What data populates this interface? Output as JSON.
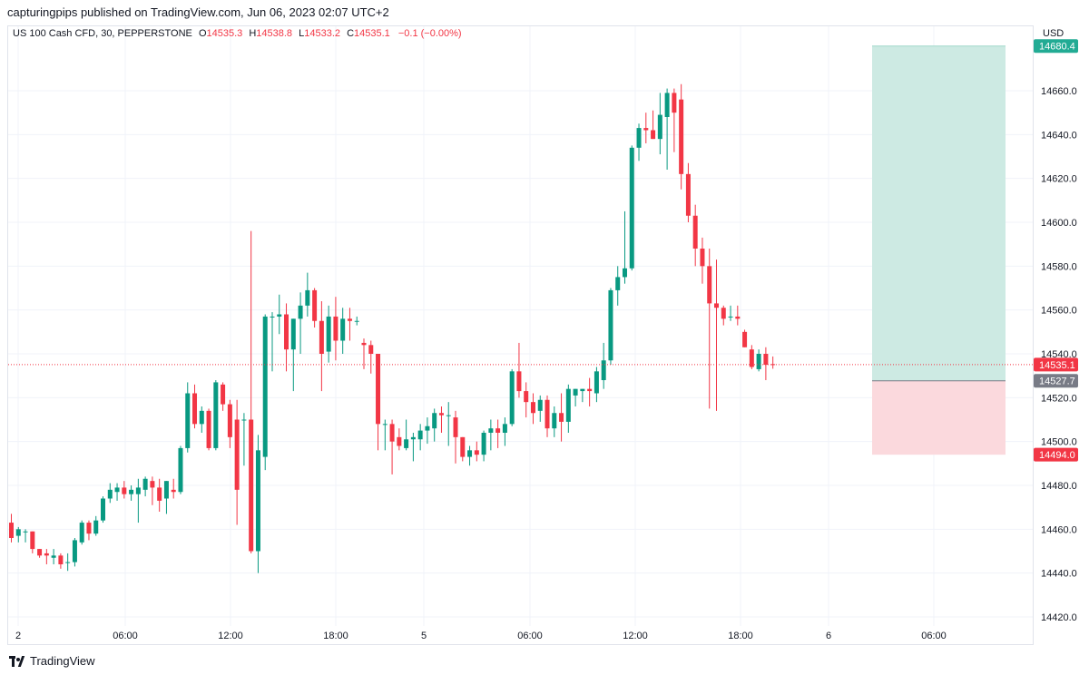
{
  "header": {
    "published_line": "capturingpips published on TradingView.com, Jun 06, 2023 02:07 UTC+2"
  },
  "legend": {
    "symbol": "US 100 Cash CFD, 30, PEPPERSTONE",
    "open_label": "O",
    "open": "14535.3",
    "high_label": "H",
    "high": "14538.8",
    "low_label": "L",
    "low": "14533.2",
    "close_label": "C",
    "close": "14535.1",
    "change": "−0.1 (−0.00%)"
  },
  "price_axis": {
    "currency": "USD",
    "ticks": [
      "14660.0",
      "14640.0",
      "14620.0",
      "14600.0",
      "14580.0",
      "14560.0",
      "14540.0",
      "14520.0",
      "14500.0",
      "14480.0",
      "14460.0",
      "14440.0",
      "14420.0"
    ],
    "tick_values": [
      14660,
      14640,
      14620,
      14600,
      14580,
      14560,
      14540,
      14520,
      14500,
      14480,
      14460,
      14440,
      14420
    ]
  },
  "time_axis": {
    "labels": [
      "2",
      "06:00",
      "12:00",
      "18:00",
      "5",
      "06:00",
      "12:00",
      "18:00",
      "6",
      "06:00"
    ]
  },
  "badges": {
    "target": "14680.4",
    "current": "14535.1",
    "entry": "14527.7",
    "stop": "14494.0"
  },
  "colors": {
    "up": "#089981",
    "down": "#f23645",
    "profit_zone": "#cdeae3",
    "loss_zone": "#fbd9dd",
    "entry_badge": "#787b86",
    "grid": "#f0f3fa"
  },
  "footer": {
    "brand": "TradingView"
  },
  "chart_data": {
    "type": "candlestick",
    "interval": "30",
    "ylim": [
      14415,
      14683
    ],
    "position": {
      "type": "long",
      "entry": 14527.7,
      "target": 14680.4,
      "stop": 14494.0
    },
    "ohlc": [
      {
        "o": 14463,
        "h": 14467,
        "l": 14454,
        "c": 14456
      },
      {
        "o": 14457,
        "h": 14461,
        "l": 14454,
        "c": 14460
      },
      {
        "o": 14459,
        "h": 14460,
        "l": 14454,
        "c": 14459
      },
      {
        "o": 14459,
        "h": 14459,
        "l": 14449,
        "c": 14451
      },
      {
        "o": 14451,
        "h": 14451,
        "l": 14447,
        "c": 14448
      },
      {
        "o": 14449,
        "h": 14451,
        "l": 14444,
        "c": 14448
      },
      {
        "o": 14447,
        "h": 14451,
        "l": 14444,
        "c": 14448
      },
      {
        "o": 14448,
        "h": 14449,
        "l": 14442,
        "c": 14444
      },
      {
        "o": 14445,
        "h": 14449,
        "l": 14441,
        "c": 14445
      },
      {
        "o": 14445,
        "h": 14456,
        "l": 14443,
        "c": 14455
      },
      {
        "o": 14454,
        "h": 14464,
        "l": 14453,
        "c": 14463
      },
      {
        "o": 14463,
        "h": 14464,
        "l": 14455,
        "c": 14458
      },
      {
        "o": 14458,
        "h": 14466,
        "l": 14457,
        "c": 14464
      },
      {
        "o": 14464,
        "h": 14475,
        "l": 14463,
        "c": 14474
      },
      {
        "o": 14474,
        "h": 14481,
        "l": 14472,
        "c": 14478
      },
      {
        "o": 14477,
        "h": 14481,
        "l": 14473,
        "c": 14479
      },
      {
        "o": 14479,
        "h": 14482,
        "l": 14474,
        "c": 14476
      },
      {
        "o": 14476,
        "h": 14480,
        "l": 14473,
        "c": 14478
      },
      {
        "o": 14476,
        "h": 14483,
        "l": 14463,
        "c": 14479
      },
      {
        "o": 14478,
        "h": 14484,
        "l": 14475,
        "c": 14483
      },
      {
        "o": 14482,
        "h": 14484,
        "l": 14471,
        "c": 14479
      },
      {
        "o": 14479,
        "h": 14483,
        "l": 14468,
        "c": 14473
      },
      {
        "o": 14474,
        "h": 14482,
        "l": 14467,
        "c": 14482
      },
      {
        "o": 14478,
        "h": 14483,
        "l": 14474,
        "c": 14477
      },
      {
        "o": 14477,
        "h": 14498,
        "l": 14476,
        "c": 14497
      },
      {
        "o": 14497,
        "h": 14527,
        "l": 14495,
        "c": 14522
      },
      {
        "o": 14522,
        "h": 14526,
        "l": 14506,
        "c": 14508
      },
      {
        "o": 14508,
        "h": 14516,
        "l": 14504,
        "c": 14514
      },
      {
        "o": 14514,
        "h": 14515,
        "l": 14496,
        "c": 14497
      },
      {
        "o": 14497,
        "h": 14528,
        "l": 14496,
        "c": 14527
      },
      {
        "o": 14526,
        "h": 14527,
        "l": 14514,
        "c": 14517
      },
      {
        "o": 14517,
        "h": 14519,
        "l": 14497,
        "c": 14502
      },
      {
        "o": 14510,
        "h": 14519,
        "l": 14462,
        "c": 14478
      },
      {
        "o": 14510,
        "h": 14513,
        "l": 14489,
        "c": 14510
      },
      {
        "o": 14510,
        "h": 14596,
        "l": 14449,
        "c": 14450
      },
      {
        "o": 14450,
        "h": 14503,
        "l": 14440,
        "c": 14496
      },
      {
        "o": 14493,
        "h": 14558,
        "l": 14487,
        "c": 14557
      },
      {
        "o": 14557,
        "h": 14559,
        "l": 14532,
        "c": 14557
      },
      {
        "o": 14557,
        "h": 14567,
        "l": 14549,
        "c": 14558
      },
      {
        "o": 14558,
        "h": 14563,
        "l": 14532,
        "c": 14542
      },
      {
        "o": 14542,
        "h": 14556,
        "l": 14523,
        "c": 14556
      },
      {
        "o": 14556,
        "h": 14568,
        "l": 14540,
        "c": 14562
      },
      {
        "o": 14562,
        "h": 14577,
        "l": 14557,
        "c": 14569
      },
      {
        "o": 14569,
        "h": 14570,
        "l": 14552,
        "c": 14555
      },
      {
        "o": 14555,
        "h": 14564,
        "l": 14523,
        "c": 14540
      },
      {
        "o": 14541,
        "h": 14562,
        "l": 14536,
        "c": 14557
      },
      {
        "o": 14557,
        "h": 14566,
        "l": 14537,
        "c": 14546
      },
      {
        "o": 14546,
        "h": 14561,
        "l": 14540,
        "c": 14556
      },
      {
        "o": 14556,
        "h": 14561,
        "l": 14546,
        "c": 14555
      },
      {
        "o": 14555,
        "h": 14557,
        "l": 14553,
        "c": 14555
      },
      {
        "o": 14545,
        "h": 14547,
        "l": 14533,
        "c": 14544
      },
      {
        "o": 14544,
        "h": 14546,
        "l": 14531,
        "c": 14540
      },
      {
        "o": 14540,
        "h": 14540,
        "l": 14496,
        "c": 14508
      },
      {
        "o": 14508,
        "h": 14510,
        "l": 14496,
        "c": 14508
      },
      {
        "o": 14508,
        "h": 14510,
        "l": 14485,
        "c": 14500
      },
      {
        "o": 14502,
        "h": 14506,
        "l": 14496,
        "c": 14498
      },
      {
        "o": 14497,
        "h": 14510,
        "l": 14496,
        "c": 14501
      },
      {
        "o": 14501,
        "h": 14504,
        "l": 14491,
        "c": 14502
      },
      {
        "o": 14501,
        "h": 14508,
        "l": 14496,
        "c": 14505
      },
      {
        "o": 14505,
        "h": 14511,
        "l": 14499,
        "c": 14507
      },
      {
        "o": 14506,
        "h": 14515,
        "l": 14500,
        "c": 14513
      },
      {
        "o": 14513,
        "h": 14516,
        "l": 14504,
        "c": 14512
      },
      {
        "o": 14512,
        "h": 14518,
        "l": 14498,
        "c": 14512
      },
      {
        "o": 14511,
        "h": 14514,
        "l": 14490,
        "c": 14502
      },
      {
        "o": 14502,
        "h": 14502,
        "l": 14491,
        "c": 14493
      },
      {
        "o": 14493,
        "h": 14498,
        "l": 14489,
        "c": 14496
      },
      {
        "o": 14496,
        "h": 14500,
        "l": 14491,
        "c": 14494
      },
      {
        "o": 14494,
        "h": 14505,
        "l": 14491,
        "c": 14504
      },
      {
        "o": 14504,
        "h": 14510,
        "l": 14496,
        "c": 14506
      },
      {
        "o": 14506,
        "h": 14510,
        "l": 14497,
        "c": 14504
      },
      {
        "o": 14504,
        "h": 14511,
        "l": 14498,
        "c": 14508
      },
      {
        "o": 14508,
        "h": 14533,
        "l": 14507,
        "c": 14532
      },
      {
        "o": 14532,
        "h": 14545,
        "l": 14520,
        "c": 14523
      },
      {
        "o": 14523,
        "h": 14527,
        "l": 14511,
        "c": 14518
      },
      {
        "o": 14518,
        "h": 14522,
        "l": 14508,
        "c": 14513
      },
      {
        "o": 14514,
        "h": 14521,
        "l": 14509,
        "c": 14519
      },
      {
        "o": 14519,
        "h": 14521,
        "l": 14502,
        "c": 14506
      },
      {
        "o": 14506,
        "h": 14516,
        "l": 14502,
        "c": 14513
      },
      {
        "o": 14513,
        "h": 14522,
        "l": 14500,
        "c": 14509
      },
      {
        "o": 14509,
        "h": 14526,
        "l": 14504,
        "c": 14524
      },
      {
        "o": 14521,
        "h": 14524,
        "l": 14516,
        "c": 14524
      },
      {
        "o": 14523,
        "h": 14524,
        "l": 14518,
        "c": 14524
      },
      {
        "o": 14524,
        "h": 14529,
        "l": 14516,
        "c": 14523
      },
      {
        "o": 14522,
        "h": 14534,
        "l": 14518,
        "c": 14532
      },
      {
        "o": 14528,
        "h": 14545,
        "l": 14524,
        "c": 14537
      },
      {
        "o": 14537,
        "h": 14570,
        "l": 14535,
        "c": 14569
      },
      {
        "o": 14569,
        "h": 14580,
        "l": 14562,
        "c": 14575
      },
      {
        "o": 14575,
        "h": 14605,
        "l": 14572,
        "c": 14579
      },
      {
        "o": 14579,
        "h": 14635,
        "l": 14578,
        "c": 14634
      },
      {
        "o": 14634,
        "h": 14645,
        "l": 14628,
        "c": 14643
      },
      {
        "o": 14643,
        "h": 14650,
        "l": 14636,
        "c": 14642
      },
      {
        "o": 14642,
        "h": 14651,
        "l": 14638,
        "c": 14638
      },
      {
        "o": 14638,
        "h": 14659,
        "l": 14631,
        "c": 14649
      },
      {
        "o": 14648,
        "h": 14661,
        "l": 14624,
        "c": 14659
      },
      {
        "o": 14659,
        "h": 14661,
        "l": 14632,
        "c": 14650
      },
      {
        "o": 14656,
        "h": 14663,
        "l": 14615,
        "c": 14622
      },
      {
        "o": 14622,
        "h": 14627,
        "l": 14600,
        "c": 14603
      },
      {
        "o": 14603,
        "h": 14608,
        "l": 14580,
        "c": 14588
      },
      {
        "o": 14588,
        "h": 14593,
        "l": 14572,
        "c": 14580
      },
      {
        "o": 14580,
        "h": 14588,
        "l": 14515,
        "c": 14563
      },
      {
        "o": 14563,
        "h": 14583,
        "l": 14514,
        "c": 14561
      },
      {
        "o": 14561,
        "h": 14562,
        "l": 14553,
        "c": 14556
      },
      {
        "o": 14557,
        "h": 14562,
        "l": 14555,
        "c": 14557
      },
      {
        "o": 14557,
        "h": 14562,
        "l": 14553,
        "c": 14556
      },
      {
        "o": 14550,
        "h": 14551,
        "l": 14543,
        "c": 14543
      },
      {
        "o": 14542,
        "h": 14544,
        "l": 14533,
        "c": 14534
      },
      {
        "o": 14533,
        "h": 14542,
        "l": 14532,
        "c": 14540
      },
      {
        "o": 14540,
        "h": 14543,
        "l": 14528,
        "c": 14535
      },
      {
        "o": 14535.3,
        "h": 14538.8,
        "l": 14533.2,
        "c": 14535.1
      }
    ]
  }
}
